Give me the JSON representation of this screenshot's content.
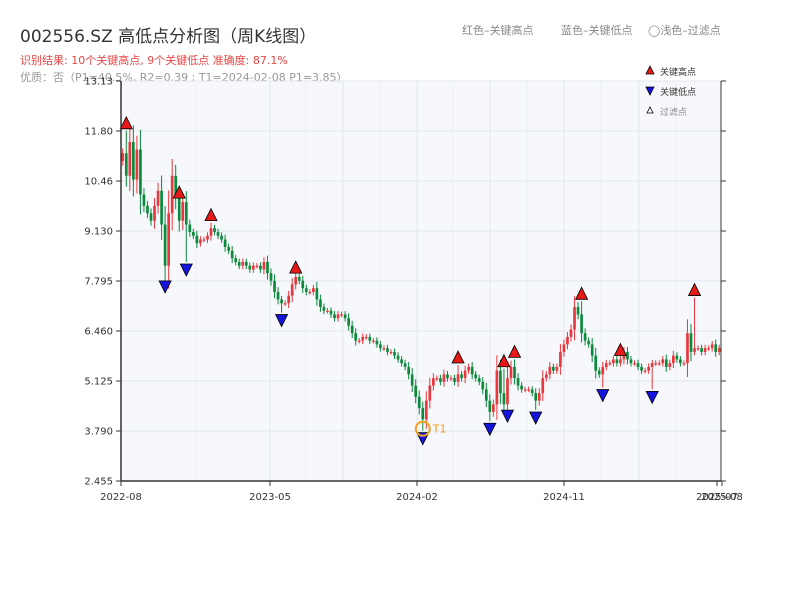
{
  "header": {
    "title": "002556.SZ 高低点分析图（周K线图）",
    "result_line": "识别结果: 10个关键高点, 9个关键低点  准确度: 87.1%",
    "quality_line": "优质：否（P1=40.5%, R2=0.39 ; T1=2024-02-08 P1=3.85）",
    "note_red": "红色–关键高点",
    "note_blue": "蓝色–关键低点",
    "note_filter": "◯浅色–过滤点"
  },
  "legend": {
    "high": "关键高点",
    "low": "关键低点",
    "filtered": "过滤点"
  },
  "colors": {
    "up": "#e8373e",
    "down": "#0b8a3c",
    "high_marker": "#e81818",
    "low_marker": "#1414dc",
    "t1_ring": "#f0a020",
    "axis": "#333333",
    "grid": "#e3e7ee",
    "plot_bg": "#f6f8fb"
  },
  "chart_data": {
    "type": "candlestick",
    "title": "002556.SZ 高低点分析图（周K线图）",
    "y_ticks": [
      "2.455",
      "3.790",
      "5.125",
      "6.460",
      "7.795",
      "9.130",
      "10.46",
      "11.80",
      "13.13"
    ],
    "ylim": [
      2.455,
      13.13
    ],
    "x_ticks": [
      "2022-08",
      "2023-05",
      "2024-02",
      "2024-11",
      "2025-07",
      "2025-08"
    ],
    "grid": true,
    "legend_position": "top-right",
    "weekly_close": [
      11.2,
      10.6,
      11.5,
      10.5,
      11.3,
      10.1,
      9.8,
      9.6,
      9.4,
      9.8,
      10.2,
      9.3,
      8.2,
      9.6,
      10.6,
      10.0,
      9.4,
      9.9,
      9.3,
      9.1,
      9.0,
      8.8,
      8.9,
      8.9,
      9.0,
      9.2,
      9.1,
      9.0,
      8.9,
      8.7,
      8.6,
      8.4,
      8.3,
      8.2,
      8.3,
      8.2,
      8.1,
      8.2,
      8.2,
      8.1,
      8.3,
      8.0,
      7.8,
      7.5,
      7.3,
      7.2,
      7.2,
      7.4,
      7.7,
      7.9,
      7.8,
      7.6,
      7.5,
      7.5,
      7.6,
      7.3,
      7.1,
      7.0,
      7.0,
      6.9,
      6.8,
      6.9,
      6.9,
      6.8,
      6.6,
      6.4,
      6.2,
      6.2,
      6.3,
      6.3,
      6.2,
      6.2,
      6.1,
      6.0,
      6.0,
      5.9,
      5.9,
      5.8,
      5.7,
      5.6,
      5.5,
      5.3,
      5.0,
      4.7,
      4.4,
      4.1,
      4.6,
      5.0,
      5.2,
      5.2,
      5.1,
      5.3,
      5.2,
      5.2,
      5.1,
      5.3,
      5.2,
      5.4,
      5.5,
      5.3,
      5.2,
      5.1,
      4.9,
      4.6,
      4.3,
      4.5,
      5.4,
      4.8,
      4.5,
      5.2,
      5.5,
      5.2,
      5.0,
      4.9,
      4.9,
      4.9,
      4.8,
      4.6,
      4.8,
      5.2,
      5.3,
      5.5,
      5.4,
      5.5,
      5.9,
      6.1,
      6.3,
      6.5,
      7.1,
      6.9,
      6.4,
      6.2,
      6.1,
      5.8,
      5.4,
      5.3,
      5.5,
      5.6,
      5.6,
      5.7,
      5.6,
      5.7,
      5.9,
      5.7,
      5.6,
      5.6,
      5.5,
      5.4,
      5.4,
      5.5,
      5.6,
      5.6,
      5.6,
      5.7,
      5.5,
      5.6,
      5.8,
      5.7,
      5.6,
      5.6,
      6.4,
      5.9,
      6.0,
      6.0,
      5.9,
      6.0,
      6.0,
      6.1,
      5.9,
      6.0
    ],
    "key_highs": [
      {
        "week": 1,
        "value": 11.8
      },
      {
        "week": 16,
        "value": 9.95
      },
      {
        "week": 25,
        "value": 9.35
      },
      {
        "week": 49,
        "value": 7.95
      },
      {
        "week": 95,
        "value": 5.55
      },
      {
        "week": 108,
        "value": 5.45
      },
      {
        "week": 111,
        "value": 5.7
      },
      {
        "week": 130,
        "value": 7.25
      },
      {
        "week": 141,
        "value": 5.75
      },
      {
        "week": 162,
        "value": 7.35
      }
    ],
    "key_lows": [
      {
        "week": 12,
        "value": 7.85
      },
      {
        "week": 18,
        "value": 8.3
      },
      {
        "week": 45,
        "value": 6.95
      },
      {
        "week": 85,
        "value": 3.8
      },
      {
        "week": 104,
        "value": 4.05
      },
      {
        "week": 109,
        "value": 4.4
      },
      {
        "week": 117,
        "value": 4.35
      },
      {
        "week": 136,
        "value": 4.95
      },
      {
        "week": 150,
        "value": 4.9
      }
    ],
    "t1": {
      "week": 85,
      "value": 3.85,
      "label": "T1"
    }
  }
}
